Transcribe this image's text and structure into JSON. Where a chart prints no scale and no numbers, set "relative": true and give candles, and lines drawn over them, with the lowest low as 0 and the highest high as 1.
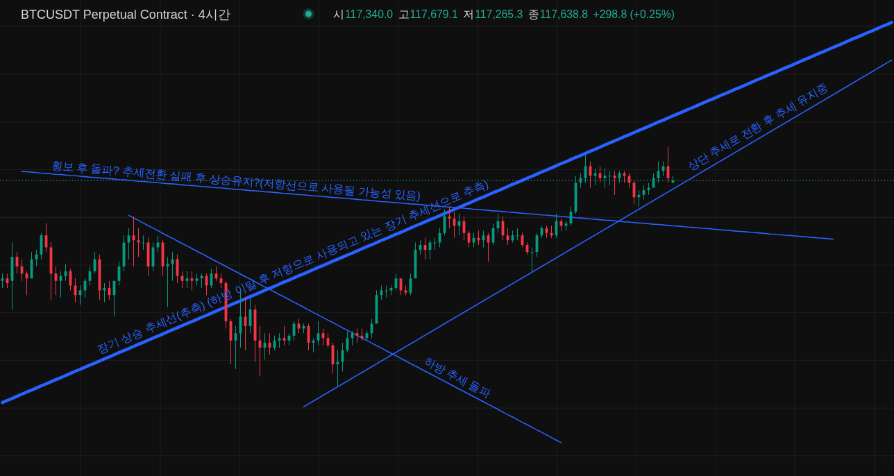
{
  "chart_data": {
    "type": "candlestick",
    "title": "BTCUSDT Perpetual Contract · 4시간",
    "relative": true,
    "grid": true,
    "annotations": [
      "시",
      "117,340.0",
      "고",
      "117,679.1",
      "저",
      "117,265.3",
      "종",
      "117,638.8",
      "+298.8 (+0.25%)"
    ],
    "categories": [
      null,
      null,
      null,
      null,
      null,
      null,
      null,
      null,
      null,
      null,
      null,
      null,
      null,
      null,
      null,
      null,
      null,
      null,
      null,
      null,
      null,
      null,
      null,
      null,
      null,
      null,
      null,
      null,
      null,
      null,
      null,
      null,
      null,
      null,
      null,
      null,
      null,
      null,
      null,
      null,
      null,
      null,
      null,
      null,
      null,
      null,
      null,
      null,
      null,
      null,
      null,
      null,
      null,
      null,
      null,
      null,
      null,
      null,
      null,
      null,
      null,
      null,
      null,
      null,
      null,
      null,
      null,
      null,
      null,
      null,
      null,
      null,
      null,
      null,
      null,
      null,
      null,
      null,
      null,
      null,
      null,
      null,
      null,
      null,
      null,
      null,
      null,
      null,
      null,
      null,
      null,
      null,
      null,
      null,
      null,
      null,
      null,
      null,
      null,
      null,
      null,
      null,
      null,
      null,
      null,
      null,
      null,
      null,
      null,
      null,
      null,
      null,
      null,
      null,
      null,
      null,
      null,
      null,
      null,
      null,
      null,
      null,
      null,
      null,
      null,
      null,
      null,
      null,
      null,
      null,
      null,
      null,
      null,
      null,
      null,
      null,
      null,
      null,
      null,
      null,
      null,
      null,
      null,
      null,
      null,
      null,
      null,
      null,
      null,
      null,
      null,
      null,
      null,
      null,
      null,
      null,
      null,
      null,
      null,
      null,
      null,
      null,
      null,
      null,
      null,
      null,
      null,
      null,
      null,
      null,
      null,
      null,
      null,
      null,
      null,
      null,
      null,
      null,
      null,
      null,
      null,
      null,
      null,
      null
    ],
    "ohlc": [
      [
        0.44,
        0.47,
        0.41,
        0.45
      ],
      [
        0.45,
        0.47,
        0.41,
        0.43
      ],
      [
        0.44,
        0.6,
        0.32,
        0.54
      ],
      [
        0.54,
        0.56,
        0.47,
        0.5
      ],
      [
        0.5,
        0.53,
        0.44,
        0.47
      ],
      [
        0.47,
        0.48,
        0.38,
        0.45
      ],
      [
        0.45,
        0.56,
        0.45,
        0.53
      ],
      [
        0.53,
        0.57,
        0.5,
        0.55
      ],
      [
        0.55,
        0.64,
        0.53,
        0.63
      ],
      [
        0.63,
        0.68,
        0.56,
        0.58
      ],
      [
        0.58,
        0.6,
        0.36,
        0.47
      ],
      [
        0.47,
        0.5,
        0.38,
        0.44
      ],
      [
        0.44,
        0.48,
        0.37,
        0.46
      ],
      [
        0.46,
        0.51,
        0.44,
        0.48
      ],
      [
        0.48,
        0.49,
        0.4,
        0.42
      ],
      [
        0.42,
        0.45,
        0.35,
        0.38
      ],
      [
        0.38,
        0.42,
        0.34,
        0.4
      ],
      [
        0.4,
        0.45,
        0.37,
        0.44
      ],
      [
        0.44,
        0.5,
        0.42,
        0.48
      ],
      [
        0.48,
        0.56,
        0.47,
        0.53
      ],
      [
        0.53,
        0.55,
        0.36,
        0.4
      ],
      [
        0.4,
        0.43,
        0.35,
        0.41
      ],
      [
        0.41,
        0.44,
        0.36,
        0.38
      ],
      [
        0.38,
        0.44,
        0.29,
        0.44
      ],
      [
        0.44,
        0.52,
        0.42,
        0.5
      ],
      [
        0.5,
        0.63,
        0.48,
        0.6
      ],
      [
        0.6,
        0.66,
        0.53,
        0.63
      ],
      [
        0.63,
        0.71,
        0.5,
        0.61
      ],
      [
        0.61,
        0.66,
        0.54,
        0.6
      ],
      [
        0.6,
        0.63,
        0.57,
        0.6
      ],
      [
        0.6,
        0.62,
        0.46,
        0.5
      ],
      [
        0.5,
        0.6,
        0.48,
        0.58
      ],
      [
        0.58,
        0.63,
        0.56,
        0.6
      ],
      [
        0.6,
        0.61,
        0.46,
        0.5
      ],
      [
        0.5,
        0.54,
        0.33,
        0.51
      ],
      [
        0.51,
        0.56,
        0.44,
        0.53
      ],
      [
        0.53,
        0.55,
        0.43,
        0.46
      ],
      [
        0.46,
        0.48,
        0.41,
        0.44
      ],
      [
        0.44,
        0.48,
        0.41,
        0.45
      ],
      [
        0.45,
        0.48,
        0.4,
        0.44
      ],
      [
        0.44,
        0.47,
        0.42,
        0.45
      ],
      [
        0.45,
        0.47,
        0.41,
        0.46
      ],
      [
        0.46,
        0.47,
        0.38,
        0.42
      ],
      [
        0.42,
        0.49,
        0.41,
        0.47
      ],
      [
        0.47,
        0.5,
        0.44,
        0.45
      ],
      [
        0.45,
        0.47,
        0.41,
        0.43
      ],
      [
        0.43,
        0.44,
        0.24,
        0.27
      ],
      [
        0.27,
        0.28,
        0.09,
        0.19
      ],
      [
        0.19,
        0.25,
        0.07,
        0.22
      ],
      [
        0.22,
        0.4,
        0.16,
        0.29
      ],
      [
        0.29,
        0.37,
        0.15,
        0.25
      ],
      [
        0.25,
        0.37,
        0.22,
        0.32
      ],
      [
        0.32,
        0.34,
        0.1,
        0.19
      ],
      [
        0.19,
        0.25,
        0.04,
        0.16
      ],
      [
        0.16,
        0.22,
        0.11,
        0.18
      ],
      [
        0.18,
        0.22,
        0.13,
        0.16
      ],
      [
        0.16,
        0.21,
        0.15,
        0.19
      ],
      [
        0.19,
        0.22,
        0.16,
        0.2
      ],
      [
        0.2,
        0.25,
        0.17,
        0.19
      ],
      [
        0.19,
        0.22,
        0.17,
        0.21
      ],
      [
        0.21,
        0.27,
        0.19,
        0.26
      ],
      [
        0.26,
        0.28,
        0.22,
        0.24
      ],
      [
        0.24,
        0.26,
        0.22,
        0.25
      ],
      [
        0.25,
        0.26,
        0.15,
        0.18
      ],
      [
        0.18,
        0.2,
        0.14,
        0.19
      ],
      [
        0.19,
        0.27,
        0.17,
        0.22
      ],
      [
        0.22,
        0.24,
        0.17,
        0.2
      ],
      [
        0.2,
        0.22,
        0.16,
        0.17
      ],
      [
        0.17,
        0.18,
        0.05,
        0.09
      ],
      [
        0.09,
        0.15,
        0,
        0.1
      ],
      [
        0.1,
        0.18,
        0.06,
        0.15
      ],
      [
        0.15,
        0.23,
        0.14,
        0.2
      ],
      [
        0.2,
        0.23,
        0.17,
        0.22
      ],
      [
        0.22,
        0.24,
        0.18,
        0.21
      ],
      [
        0.21,
        0.24,
        0.19,
        0.2
      ],
      [
        0.2,
        0.23,
        0.19,
        0.22
      ],
      [
        0.22,
        0.28,
        0.2,
        0.26
      ],
      [
        0.26,
        0.4,
        0.26,
        0.38
      ],
      [
        0.38,
        0.42,
        0.36,
        0.4
      ],
      [
        0.4,
        0.42,
        0.37,
        0.4
      ],
      [
        0.4,
        0.42,
        0.38,
        0.41
      ],
      [
        0.41,
        0.47,
        0.4,
        0.45
      ],
      [
        0.45,
        0.45,
        0.38,
        0.4
      ],
      [
        0.4,
        0.42,
        0.38,
        0.39
      ],
      [
        0.39,
        0.47,
        0.38,
        0.45
      ],
      [
        0.45,
        0.6,
        0.45,
        0.57
      ],
      [
        0.57,
        0.61,
        0.55,
        0.59
      ],
      [
        0.59,
        0.62,
        0.53,
        0.57
      ],
      [
        0.57,
        0.61,
        0.53,
        0.6
      ],
      [
        0.6,
        0.62,
        0.57,
        0.6
      ],
      [
        0.6,
        0.66,
        0.58,
        0.64
      ],
      [
        0.64,
        0.74,
        0.63,
        0.71
      ],
      [
        0.71,
        0.75,
        0.66,
        0.7
      ],
      [
        0.7,
        0.73,
        0.62,
        0.67
      ],
      [
        0.67,
        0.72,
        0.63,
        0.69
      ],
      [
        0.69,
        0.71,
        0.61,
        0.64
      ],
      [
        0.64,
        0.65,
        0.58,
        0.6
      ],
      [
        0.6,
        0.64,
        0.58,
        0.62
      ],
      [
        0.62,
        0.65,
        0.59,
        0.61
      ],
      [
        0.61,
        0.65,
        0.58,
        0.63
      ],
      [
        0.63,
        0.64,
        0.52,
        0.6
      ],
      [
        0.6,
        0.68,
        0.59,
        0.66
      ],
      [
        0.66,
        0.72,
        0.64,
        0.69
      ],
      [
        0.69,
        0.71,
        0.61,
        0.63
      ],
      [
        0.63,
        0.66,
        0.59,
        0.61
      ],
      [
        0.61,
        0.65,
        0.6,
        0.63
      ],
      [
        0.63,
        0.66,
        0.61,
        0.63
      ],
      [
        0.63,
        0.64,
        0.58,
        0.59
      ],
      [
        0.59,
        0.6,
        0.55,
        0.56
      ],
      [
        0.56,
        0.58,
        0.48,
        0.56
      ],
      [
        0.56,
        0.64,
        0.54,
        0.63
      ],
      [
        0.63,
        0.67,
        0.62,
        0.66
      ],
      [
        0.66,
        0.67,
        0.62,
        0.64
      ],
      [
        0.64,
        0.67,
        0.62,
        0.63
      ],
      [
        0.63,
        0.72,
        0.62,
        0.69
      ],
      [
        0.69,
        0.7,
        0.65,
        0.67
      ],
      [
        0.67,
        0.69,
        0.65,
        0.68
      ],
      [
        0.68,
        0.75,
        0.67,
        0.73
      ],
      [
        0.73,
        0.88,
        0.72,
        0.85
      ],
      [
        0.85,
        0.89,
        0.83,
        0.87
      ],
      [
        0.87,
        0.97,
        0.85,
        0.92
      ],
      [
        0.92,
        0.94,
        0.83,
        0.88
      ],
      [
        0.88,
        0.91,
        0.84,
        0.89
      ],
      [
        0.89,
        0.92,
        0.85,
        0.87
      ],
      [
        0.87,
        0.91,
        0.83,
        0.88
      ],
      [
        0.88,
        0.9,
        0.84,
        0.88
      ],
      [
        0.88,
        0.9,
        0.8,
        0.87
      ],
      [
        0.87,
        0.9,
        0.85,
        0.89
      ],
      [
        0.89,
        0.9,
        0.85,
        0.88
      ],
      [
        0.88,
        0.89,
        0.83,
        0.85
      ],
      [
        0.85,
        0.86,
        0.76,
        0.79
      ],
      [
        0.79,
        0.82,
        0.75,
        0.8
      ],
      [
        0.8,
        0.84,
        0.78,
        0.82
      ],
      [
        0.82,
        0.85,
        0.8,
        0.83
      ],
      [
        0.83,
        0.89,
        0.83,
        0.87
      ],
      [
        0.87,
        0.94,
        0.85,
        0.9
      ],
      [
        0.9,
        0.94,
        0.88,
        0.92
      ],
      [
        0.92,
        1,
        0.85,
        0.87
      ],
      [
        0.85,
        0.88,
        0.85,
        0.86
      ],
      null,
      null,
      null,
      null,
      null,
      null,
      null,
      null,
      null,
      null,
      null,
      null,
      null,
      null,
      null,
      null,
      null,
      null,
      null,
      null,
      null,
      null,
      null,
      null,
      null,
      null,
      null,
      null,
      null,
      null,
      null,
      null,
      null,
      null,
      null,
      null,
      null,
      null,
      null,
      null,
      null,
      null,
      null,
      null,
      null
    ],
    "colors": [
      "#089981",
      "#f23645",
      "#089981",
      "#f23645",
      "#f23645",
      "#f23645",
      "#089981",
      "#089981",
      "#089981",
      "#f23645",
      "#f23645",
      "#f23645",
      "#089981",
      "#089981",
      "#f23645",
      "#f23645",
      "#089981",
      "#089981",
      "#089981",
      "#089981",
      "#f23645",
      "#089981",
      "#f23645",
      "#089981",
      "#089981",
      "#089981",
      "#089981",
      "#f23645",
      "#f23645",
      "#089981",
      "#f23645",
      "#089981",
      "#089981",
      "#f23645",
      "#089981",
      "#089981",
      "#f23645",
      "#f23645",
      "#089981",
      "#f23645",
      "#089981",
      "#089981",
      "#f23645",
      "#089981",
      "#f23645",
      "#f23645",
      "#f23645",
      "#f23645",
      "#089981",
      "#089981",
      "#f23645",
      "#089981",
      "#f23645",
      "#f23645",
      "#089981",
      "#f23645",
      "#089981",
      "#089981",
      "#f23645",
      "#089981",
      "#089981",
      "#f23645",
      "#089981",
      "#f23645",
      "#089981",
      "#089981",
      "#f23645",
      "#f23645",
      "#f23645",
      "#089981",
      "#089981",
      "#089981",
      "#089981",
      "#f23645",
      "#f23645",
      "#089981",
      "#089981",
      "#089981",
      "#089981",
      "#089981",
      "#089981",
      "#089981",
      "#f23645",
      "#f23645",
      "#089981",
      "#089981",
      "#089981",
      "#f23645",
      "#089981",
      "#089981",
      "#089981",
      "#089981",
      "#f23645",
      "#f23645",
      "#089981",
      "#f23645",
      "#f23645",
      "#089981",
      "#f23645",
      "#089981",
      "#f23645",
      "#089981",
      "#089981",
      "#f23645",
      "#f23645",
      "#089981",
      "#089981",
      "#f23645",
      "#f23645",
      "#089981",
      "#089981",
      "#089981",
      "#f23645",
      "#f23645",
      "#089981",
      "#f23645",
      "#089981",
      "#089981",
      "#089981",
      "#089981",
      "#089981",
      "#f23645",
      "#089981",
      "#f23645",
      "#089981",
      "#089981",
      "#f23645",
      "#089981",
      "#f23645",
      "#f23645",
      "#f23645",
      "#089981",
      "#089981",
      "#089981",
      "#089981",
      "#089981",
      "#089981",
      "#f23645",
      "#089981",
      null,
      null,
      null,
      null,
      null,
      null,
      null,
      null,
      null,
      null,
      null,
      null,
      null,
      null,
      null,
      null,
      null,
      null,
      null,
      null,
      null,
      null,
      null,
      null,
      null,
      null,
      null,
      null,
      null,
      null,
      null,
      null,
      null,
      null,
      null,
      null,
      null,
      null,
      null,
      null,
      null,
      null,
      null,
      null,
      null
    ],
    "series": [
      {
        "type": "line",
        "name": "장기 상승 추세선(추측) (하방 이탈 후 저항으로 사용되고 있는 장기 추세선으로 추측)",
        "color": "#2962ff",
        "values": [
          -0.07,
          -0.061,
          -0.053,
          -0.044,
          -0.035,
          -0.026,
          -0.018,
          -0.009,
          0,
          0.008,
          0.017,
          0.026,
          0.034,
          0.043,
          0.052,
          0.061,
          0.069,
          0.078,
          0.087,
          0.095,
          0.104,
          0.113,
          0.121,
          0.13,
          0.139,
          0.148,
          0.156,
          0.165,
          0.174,
          0.182,
          0.191,
          0.2,
          0.208,
          0.217,
          0.226,
          0.235,
          0.243,
          0.252,
          0.261,
          0.269,
          0.278,
          0.287,
          0.295,
          0.304,
          0.313,
          0.322,
          0.33,
          0.339,
          0.348,
          0.356,
          0.365,
          0.374,
          0.382,
          0.391,
          0.4,
          0.409,
          0.417,
          0.426,
          0.435,
          0.443,
          0.452,
          0.461,
          0.469,
          0.478,
          0.487,
          0.496,
          0.504,
          0.513,
          0.522,
          0.53,
          0.539,
          0.548,
          0.556,
          0.565,
          0.574,
          0.583,
          0.591,
          0.6,
          0.609,
          0.617,
          0.626,
          0.635,
          0.643,
          0.652,
          0.661,
          0.67,
          0.678,
          0.687,
          0.696,
          0.704,
          0.713,
          0.722,
          0.73,
          0.739,
          0.748,
          0.757,
          0.765,
          0.774,
          0.783,
          0.791,
          0.8,
          0.809,
          0.817,
          0.826,
          0.835,
          0.844,
          0.852,
          0.861,
          0.87,
          0.878,
          0.887,
          0.896,
          0.904,
          0.913,
          0.922,
          0.931,
          0.939,
          0.948,
          0.957,
          0.965,
          0.974,
          0.983,
          0.991,
          1,
          1.009,
          1.018,
          1.026,
          1.035,
          1.044,
          1.052,
          1.061,
          1.07,
          1.078,
          1.087,
          1.096,
          1.105,
          1.113,
          1.122,
          1.131,
          1.139,
          1.148,
          1.157,
          1.165,
          1.174,
          1.183,
          1.192,
          1.2,
          1.209,
          1.218,
          1.226,
          1.235,
          1.244,
          1.252,
          1.261,
          1.27,
          1.279,
          1.287,
          1.296,
          1.305,
          1.313,
          1.322,
          1.331,
          1.339,
          1.348,
          1.357,
          1.366,
          1.374,
          1.383,
          1.392,
          1.4,
          1.409,
          1.418,
          1.426,
          1.435,
          1.444,
          1.453,
          1.461,
          1.47,
          1.479,
          1.487,
          1.496,
          1.505,
          1.513,
          1.522
        ]
      },
      {
        "type": "line",
        "name": "횡보 후 돌파? 추세전환 실패 후 상승유지?(저항선으로 사용될 가능성 있음)",
        "color": "#2962ff",
        "values": [
          null,
          null,
          null,
          null,
          0.898,
          0.897,
          0.895,
          0.893,
          0.891,
          0.89,
          0.888,
          0.886,
          0.885,
          0.883,
          0.881,
          0.88,
          0.878,
          0.876,
          0.874,
          0.873,
          0.871,
          0.869,
          0.868,
          0.866,
          0.864,
          0.863,
          0.861,
          0.859,
          0.857,
          0.856,
          0.854,
          0.852,
          0.851,
          0.849,
          0.847,
          0.846,
          0.844,
          0.842,
          0.84,
          0.839,
          0.837,
          0.835,
          0.834,
          0.832,
          0.83,
          0.829,
          0.827,
          0.825,
          0.823,
          0.822,
          0.82,
          0.818,
          0.817,
          0.815,
          0.813,
          0.812,
          0.81,
          0.808,
          0.806,
          0.805,
          0.803,
          0.801,
          0.8,
          0.798,
          0.796,
          0.795,
          0.793,
          0.791,
          0.789,
          0.788,
          0.786,
          0.784,
          0.783,
          0.781,
          0.779,
          0.778,
          0.776,
          0.774,
          0.772,
          0.771,
          0.769,
          0.767,
          0.766,
          0.764,
          0.762,
          0.761,
          0.759,
          0.757,
          0.755,
          0.754,
          0.752,
          0.75,
          0.749,
          0.747,
          0.745,
          0.744,
          0.742,
          0.74,
          0.738,
          0.737,
          0.735,
          0.733,
          0.732,
          0.73,
          0.728,
          0.727,
          0.725,
          0.723,
          0.721,
          0.72,
          0.718,
          0.716,
          0.715,
          0.713,
          0.711,
          0.71,
          0.708,
          0.706,
          0.704,
          0.703,
          0.701,
          0.699,
          0.698,
          0.696,
          0.694,
          0.693,
          0.691,
          0.689,
          0.687,
          0.686,
          0.684,
          0.682,
          0.681,
          0.679,
          0.677,
          0.676,
          0.674,
          0.672,
          0.67,
          0.669,
          0.667,
          0.665,
          0.664,
          0.662,
          0.66,
          0.659,
          0.657,
          0.655,
          0.653,
          0.652,
          0.65,
          0.648,
          0.647,
          0.645,
          0.643,
          0.642,
          0.64,
          0.638,
          0.636,
          0.635,
          0.633,
          0.631,
          0.63,
          0.628,
          0.626,
          0.625,
          0.623,
          0.621,
          0.619,
          0.618,
          0.616,
          0.614,
          null,
          null,
          null,
          null,
          null,
          null,
          null,
          null,
          null,
          null,
          null,
          null
        ]
      },
      {
        "type": "line",
        "name": "하방 추세 돌파",
        "color": "#2962ff",
        "values": [
          null,
          null,
          null,
          null,
          null,
          null,
          null,
          null,
          null,
          null,
          null,
          null,
          null,
          null,
          null,
          null,
          null,
          null,
          null,
          null,
          null,
          null,
          null,
          null,
          null,
          null,
          0.714,
          0.703,
          0.693,
          0.682,
          0.671,
          0.661,
          0.65,
          0.639,
          0.628,
          0.618,
          0.607,
          0.596,
          0.586,
          0.575,
          0.564,
          0.554,
          0.543,
          0.532,
          0.521,
          0.511,
          0.5,
          0.489,
          0.479,
          0.468,
          0.457,
          0.447,
          0.436,
          0.425,
          0.414,
          0.404,
          0.393,
          0.382,
          0.372,
          0.361,
          0.35,
          0.34,
          0.329,
          0.318,
          0.307,
          0.297,
          0.286,
          0.275,
          0.265,
          0.254,
          0.243,
          0.233,
          0.222,
          0.211,
          0.2,
          0.19,
          0.179,
          0.168,
          0.158,
          0.147,
          0.136,
          0.126,
          0.115,
          0.104,
          0.093,
          0.083,
          0.072,
          0.061,
          0.051,
          0.04,
          0.029,
          0.019,
          0.008,
          -0.003,
          -0.014,
          -0.024,
          -0.035,
          -0.046,
          -0.056,
          -0.067,
          -0.078,
          -0.088,
          -0.099,
          -0.11,
          -0.121,
          -0.131,
          -0.142,
          -0.153,
          -0.163,
          -0.174,
          -0.185,
          -0.195,
          -0.206,
          -0.217,
          -0.228,
          -0.238,
          null,
          null,
          null,
          null,
          null,
          null,
          null,
          null,
          null,
          null,
          null,
          null,
          null,
          null,
          null,
          null,
          null,
          null,
          null,
          null,
          null,
          null,
          null,
          null,
          null,
          null,
          null,
          null,
          null,
          null,
          null,
          null,
          null,
          null,
          null,
          null,
          null,
          null,
          null,
          null,
          null,
          null,
          null,
          null,
          null,
          null,
          null,
          null,
          null,
          null,
          null,
          null,
          null,
          null,
          null,
          null,
          null,
          null,
          null,
          null,
          null,
          null,
          null,
          null,
          null,
          null,
          null,
          null
        ]
      },
      {
        "type": "line",
        "name": "상단 추세로 전환 후 추세 유지중",
        "color": "#2962ff",
        "values": [
          null,
          null,
          null,
          null,
          null,
          null,
          null,
          null,
          null,
          null,
          null,
          null,
          null,
          null,
          null,
          null,
          null,
          null,
          null,
          null,
          null,
          null,
          null,
          null,
          null,
          null,
          null,
          null,
          null,
          null,
          null,
          null,
          null,
          null,
          null,
          null,
          null,
          null,
          null,
          null,
          null,
          null,
          null,
          null,
          null,
          null,
          null,
          null,
          null,
          null,
          null,
          null,
          null,
          null,
          null,
          null,
          null,
          null,
          null,
          null,
          null,
          null,
          -0.088,
          -0.076,
          -0.064,
          -0.052,
          -0.04,
          -0.028,
          -0.016,
          -0.004,
          0.008,
          0.02,
          0.032,
          0.044,
          0.056,
          0.068,
          0.08,
          0.092,
          0.104,
          0.116,
          0.128,
          0.14,
          0.152,
          0.164,
          0.176,
          0.188,
          0.2,
          0.212,
          0.224,
          0.236,
          0.248,
          0.26,
          0.272,
          0.284,
          0.296,
          0.308,
          0.32,
          0.332,
          0.344,
          0.356,
          0.368,
          0.38,
          0.392,
          0.404,
          0.416,
          0.428,
          0.44,
          0.452,
          0.464,
          0.476,
          0.488,
          0.5,
          0.512,
          0.524,
          0.536,
          0.548,
          0.56,
          0.572,
          0.584,
          0.596,
          0.608,
          0.62,
          0.632,
          0.644,
          0.656,
          0.668,
          0.68,
          0.692,
          0.704,
          0.716,
          0.728,
          0.74,
          0.752,
          0.764,
          0.776,
          0.788,
          0.8,
          0.812,
          0.824,
          0.836,
          0.848,
          0.86,
          0.872,
          0.884,
          0.896,
          0.908,
          0.92,
          0.932,
          0.944,
          0.956,
          0.968,
          0.98,
          0.992,
          1.004,
          1.016,
          1.028,
          1.04,
          1.052,
          1.064,
          1.076,
          1.088,
          1.1,
          1.112,
          1.124,
          1.136,
          1.148,
          1.16,
          1.172,
          1.184,
          1.196,
          1.208,
          1.22,
          1.232,
          1.244,
          1.256,
          1.268,
          1.28,
          1.292,
          1.304,
          1.316,
          1.328,
          1.34,
          1.352,
          1.364
        ]
      }
    ],
    "ref_lines": [
      {
        "axis": "y",
        "value": 0.86,
        "color": "#22ab94",
        "line_style": "dotted"
      }
    ]
  }
}
